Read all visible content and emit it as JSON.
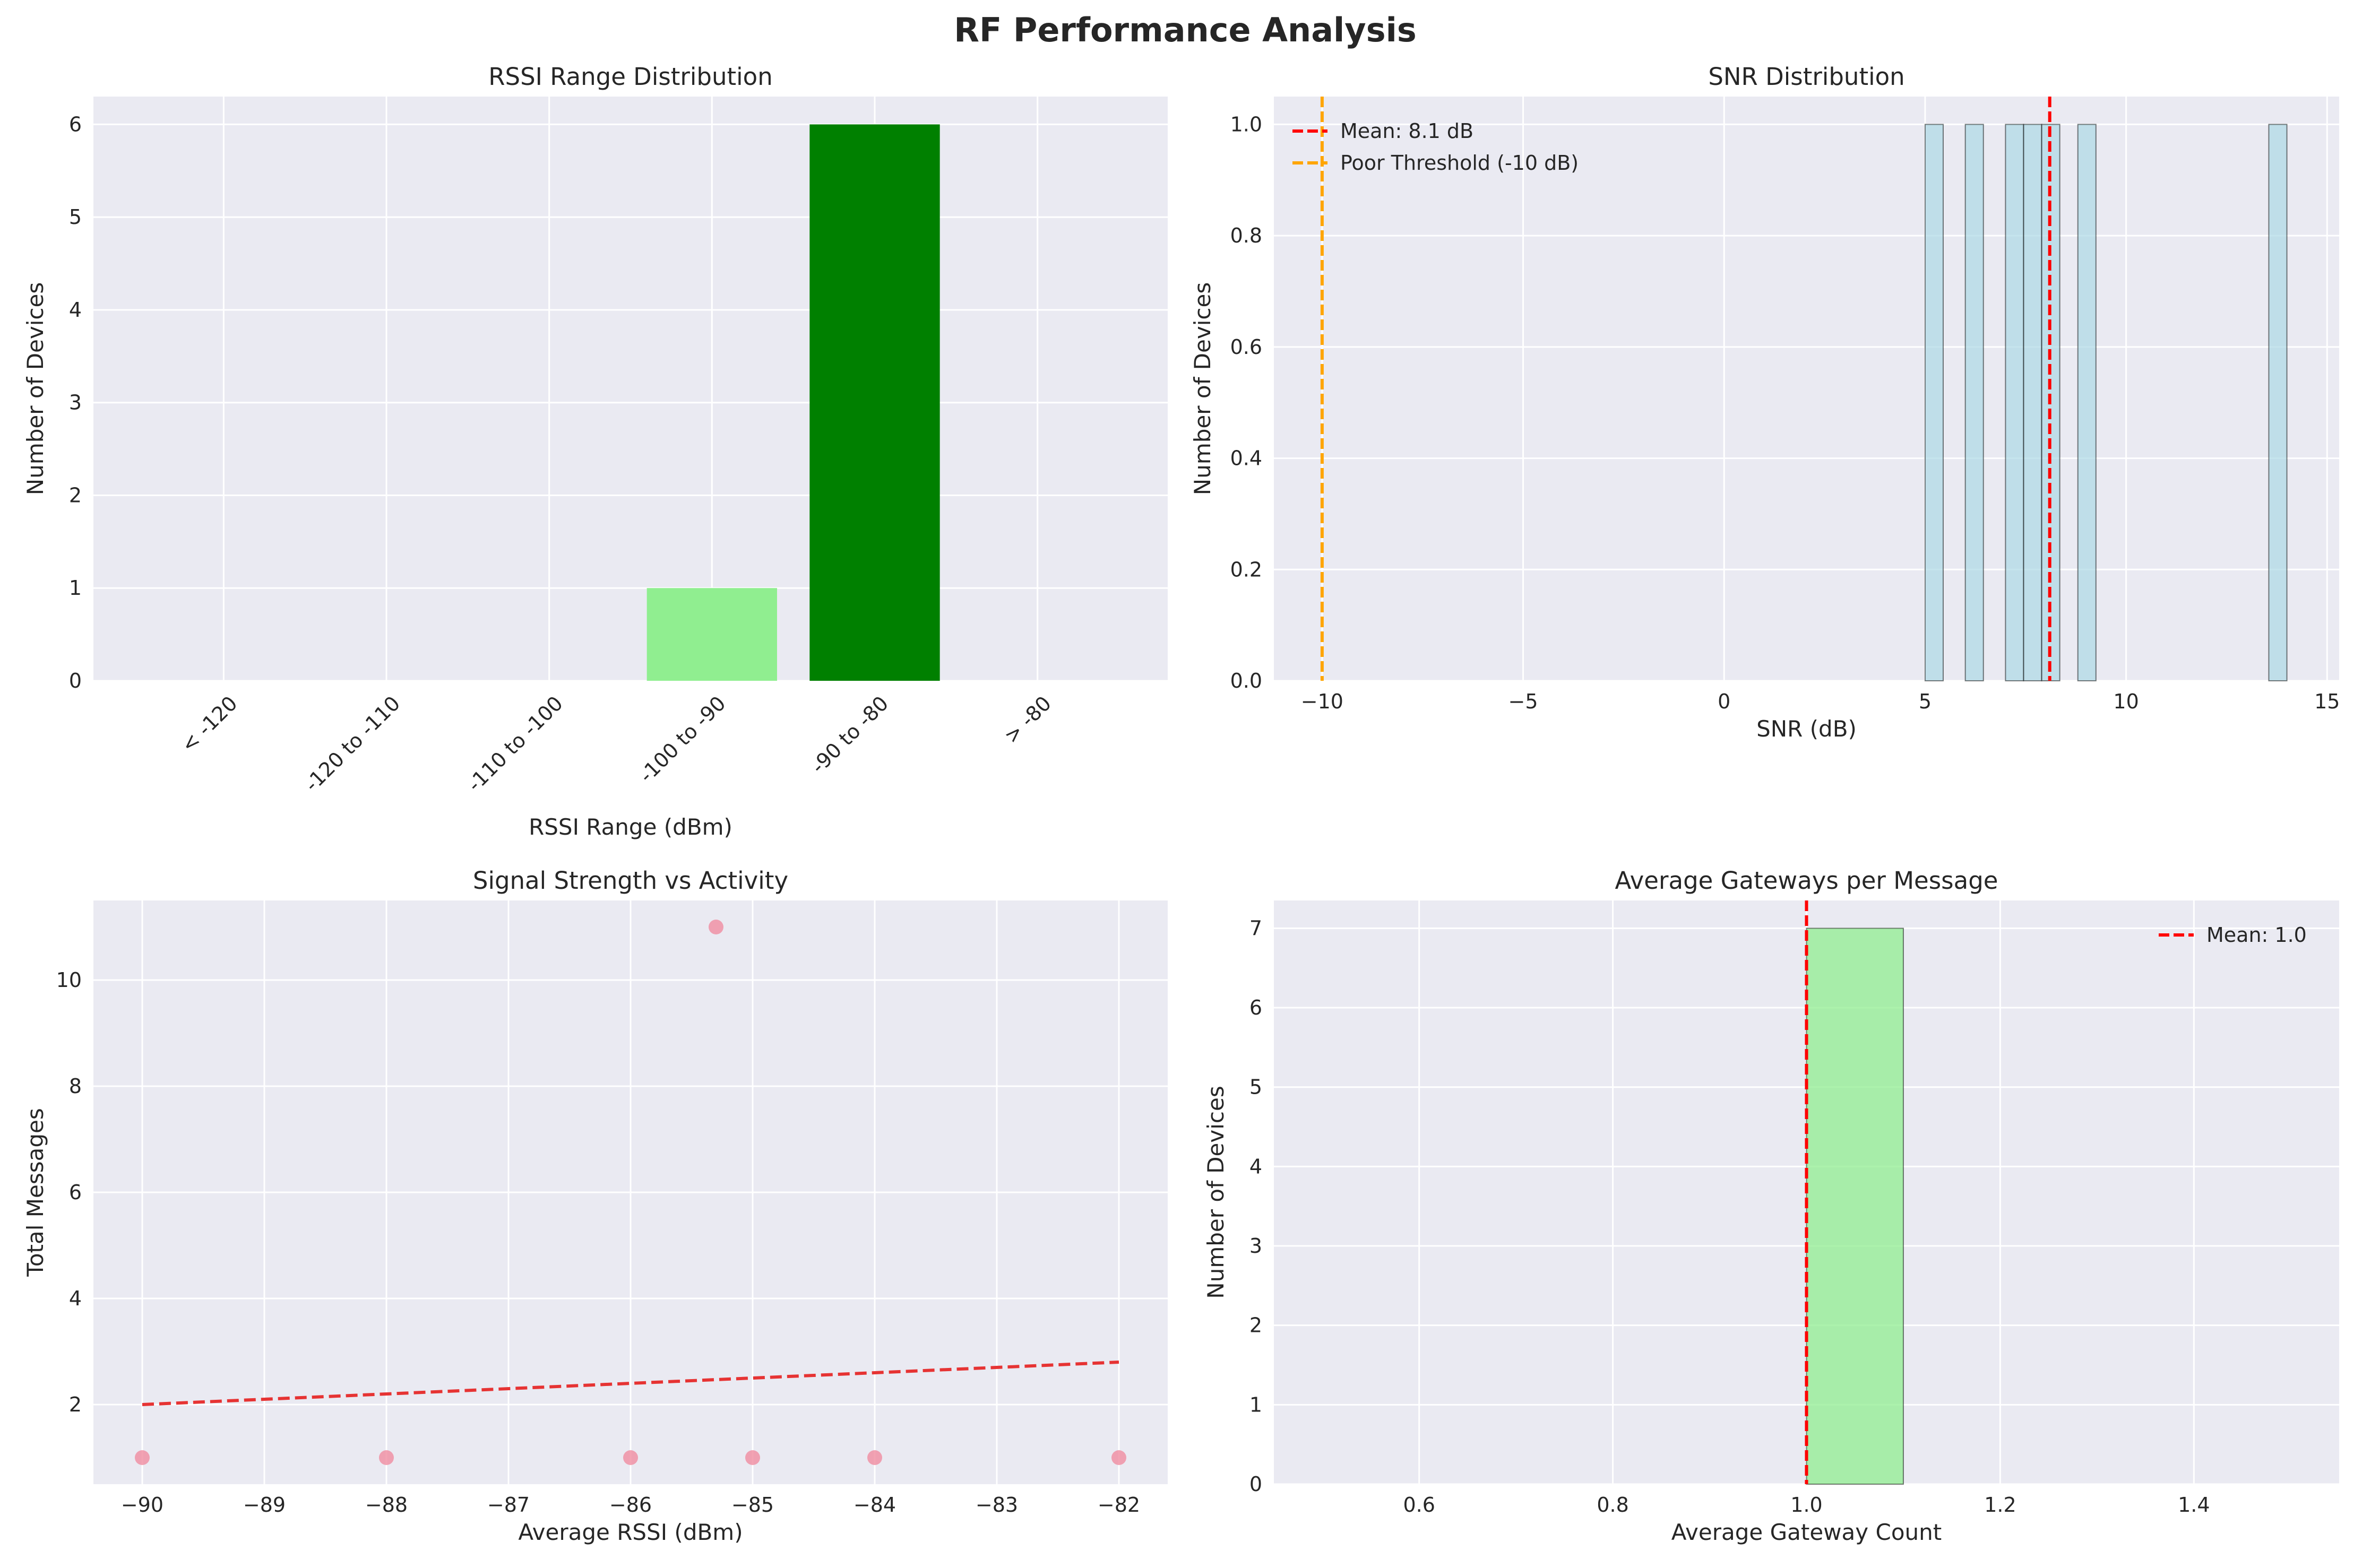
{
  "title": "RF Performance Analysis",
  "colors": {
    "axes_bg": "#EAEAF2",
    "grid": "#FFFFFF",
    "text": "#262626",
    "bar_light_green": "#90EE90",
    "bar_green": "#008000",
    "snr_bar": "#ADD8E6",
    "mean_line": "#FF0000",
    "threshold_line": "#FFA500",
    "scatter_point": "#F08CA0",
    "trend_line": "#E63333",
    "gateway_bar": "#90EE90"
  },
  "chart_data": [
    {
      "type": "bar",
      "title": "RSSI Range Distribution",
      "xlabel": "RSSI Range (dBm)",
      "ylabel": "Number of Devices",
      "categories": [
        "< -120",
        "-120 to -110",
        "-110 to -100",
        "-100 to -90",
        "-90 to -80",
        "> -80"
      ],
      "values": [
        0,
        0,
        0,
        1,
        6,
        0
      ],
      "bar_colors": [
        "#FF0000",
        "#FF4500",
        "#FFA500",
        "#90EE90",
        "#008000",
        "#006400"
      ],
      "ylim": [
        0,
        6.3
      ],
      "yticks": [
        0,
        1,
        2,
        3,
        4,
        5,
        6
      ],
      "grid": true
    },
    {
      "type": "bar",
      "subtype": "histogram",
      "title": "SNR Distribution",
      "xlabel": "SNR (dB)",
      "ylabel": "Number of Devices",
      "bins": [
        {
          "x0": 5.0,
          "x1": 5.45,
          "count": 1
        },
        {
          "x0": 6.0,
          "x1": 6.45,
          "count": 1
        },
        {
          "x0": 7.0,
          "x1": 7.45,
          "count": 1
        },
        {
          "x0": 7.45,
          "x1": 7.9,
          "count": 1
        },
        {
          "x0": 7.9,
          "x1": 8.35,
          "count": 1
        },
        {
          "x0": 8.8,
          "x1": 9.25,
          "count": 1
        },
        {
          "x0": 13.55,
          "x1": 14.0,
          "count": 1
        }
      ],
      "xlim": [
        -11.2,
        15.3
      ],
      "ylim": [
        0,
        1.05
      ],
      "xticks": [
        -10,
        -5,
        0,
        5,
        10,
        15
      ],
      "yticks": [
        0.0,
        0.2,
        0.4,
        0.6,
        0.8,
        1.0
      ],
      "reference_lines": [
        {
          "x": 8.1,
          "label": "Mean: 8.1 dB",
          "color": "#FF0000"
        },
        {
          "x": -10,
          "label": "Poor Threshold (-10 dB)",
          "color": "#FFA500"
        }
      ],
      "legend_position": "upper-left",
      "grid": true
    },
    {
      "type": "scatter",
      "title": "Signal Strength vs Activity",
      "xlabel": "Average RSSI (dBm)",
      "ylabel": "Total Messages",
      "points": [
        {
          "x": -90,
          "y": 1
        },
        {
          "x": -88,
          "y": 1
        },
        {
          "x": -86,
          "y": 1
        },
        {
          "x": -85.3,
          "y": 11
        },
        {
          "x": -85,
          "y": 1
        },
        {
          "x": -84,
          "y": 1
        },
        {
          "x": -82,
          "y": 1
        }
      ],
      "trend_line": {
        "x": [
          -90,
          -82
        ],
        "y": [
          2.0,
          2.8
        ]
      },
      "xlim": [
        -90.4,
        -81.6
      ],
      "ylim": [
        0.5,
        11.5
      ],
      "xticks": [
        -90,
        -89,
        -88,
        -87,
        -86,
        -85,
        -84,
        -83,
        -82
      ],
      "yticks": [
        2,
        4,
        6,
        8,
        10
      ],
      "grid": true
    },
    {
      "type": "bar",
      "subtype": "histogram",
      "title": "Average Gateways per Message",
      "xlabel": "Average Gateway Count",
      "ylabel": "Number of Devices",
      "bins": [
        {
          "x0": 1.0,
          "x1": 1.1,
          "count": 7
        }
      ],
      "xlim": [
        0.45,
        1.55
      ],
      "ylim": [
        0,
        7.35
      ],
      "xticks": [
        0.6,
        0.8,
        1.0,
        1.2,
        1.4
      ],
      "yticks": [
        0,
        1,
        2,
        3,
        4,
        5,
        6,
        7
      ],
      "reference_lines": [
        {
          "x": 1.0,
          "label": "Mean: 1.0",
          "color": "#FF0000"
        }
      ],
      "legend_position": "upper-right",
      "grid": true
    }
  ]
}
